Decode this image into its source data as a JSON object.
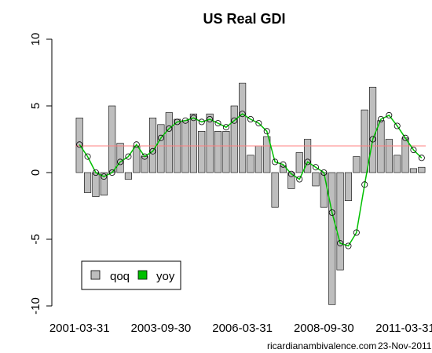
{
  "chart_data": {
    "type": "bar",
    "title": "US Real GDI",
    "xlabel": "",
    "ylabel": "",
    "ylim": [
      -10,
      10
    ],
    "y_ticks": [
      -10,
      -5,
      0,
      5,
      10
    ],
    "x_ticks": [
      "2001-03-31",
      "2003-09-30",
      "2006-03-31",
      "2008-09-30",
      "2011-03-31"
    ],
    "start_quarter": "2001-03-31",
    "reference_line": 2.0,
    "legend": {
      "placement": "bottom-left",
      "entries": [
        {
          "label": "qoq",
          "color": "#bebebe"
        },
        {
          "label": "yoy",
          "color": "#00c000"
        }
      ]
    },
    "series": [
      {
        "name": "qoq",
        "type": "bar",
        "color": "#bebebe",
        "values": [
          4.1,
          -1.5,
          -1.8,
          -1.7,
          5.0,
          2.2,
          -0.5,
          2.0,
          1.2,
          4.1,
          3.6,
          4.5,
          4.0,
          3.9,
          4.4,
          3.1,
          4.4,
          3.1,
          3.1,
          5.0,
          6.7,
          1.3,
          2.0,
          2.7,
          -2.6,
          0.5,
          -1.2,
          1.5,
          2.5,
          -1.0,
          -2.6,
          -9.9,
          -7.3,
          -2.1,
          1.2,
          4.7,
          6.4,
          3.9,
          2.5,
          1.3,
          2.6,
          0.3,
          0.4
        ]
      },
      {
        "name": "yoy",
        "type": "line",
        "color": "#00c000",
        "values": [
          2.1,
          1.2,
          0.0,
          -0.3,
          0.0,
          0.8,
          1.2,
          2.1,
          1.2,
          1.6,
          2.6,
          3.3,
          3.8,
          3.9,
          4.1,
          3.8,
          4.0,
          3.7,
          3.4,
          3.9,
          4.4,
          4.0,
          3.7,
          3.1,
          0.8,
          0.6,
          -0.1,
          -0.5,
          0.8,
          0.4,
          0.0,
          -3.0,
          -5.3,
          -5.5,
          -4.5,
          -0.9,
          2.5,
          4.0,
          4.3,
          3.5,
          2.6,
          1.7,
          1.1
        ]
      }
    ]
  },
  "footer": {
    "source": "ricardianambivalence.com",
    "date": "23-Nov-2011"
  }
}
